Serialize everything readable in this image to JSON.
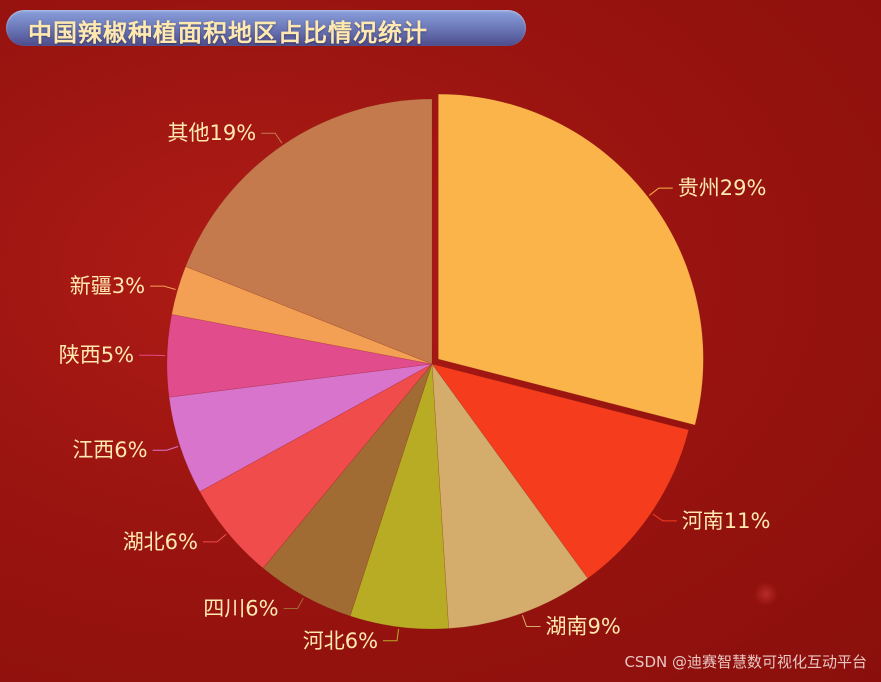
{
  "title": "中国辣椒种植面积地区占比情况统计",
  "watermark": "CSDN @迪赛智慧数可视化互动平台",
  "chart_data": {
    "type": "pie",
    "title": "中国辣椒种植面积地区占比情况统计",
    "slices": [
      {
        "name": "贵州",
        "value": 29,
        "label": "贵州29%",
        "color": "#fbb44a",
        "exploded": true
      },
      {
        "name": "河南",
        "value": 11,
        "label": "河南11%",
        "color": "#f53c1c"
      },
      {
        "name": "湖南",
        "value": 9,
        "label": "湖南9%",
        "color": "#d4ac6c"
      },
      {
        "name": "河北",
        "value": 6,
        "label": "河北6%",
        "color": "#b8ac24"
      },
      {
        "name": "四川",
        "value": 6,
        "label": "四川6%",
        "color": "#a06c34"
      },
      {
        "name": "湖北",
        "value": 6,
        "label": "湖北6%",
        "color": "#f04c4c"
      },
      {
        "name": "江西",
        "value": 6,
        "label": "江西6%",
        "color": "#d874cc"
      },
      {
        "name": "陕西",
        "value": 5,
        "label": "陕西5%",
        "color": "#e04c8c"
      },
      {
        "name": "新疆",
        "value": 3,
        "label": "新疆3%",
        "color": "#f4a054"
      },
      {
        "name": "其他",
        "value": 19,
        "label": "其他19%",
        "color": "#c47a4c"
      }
    ]
  }
}
